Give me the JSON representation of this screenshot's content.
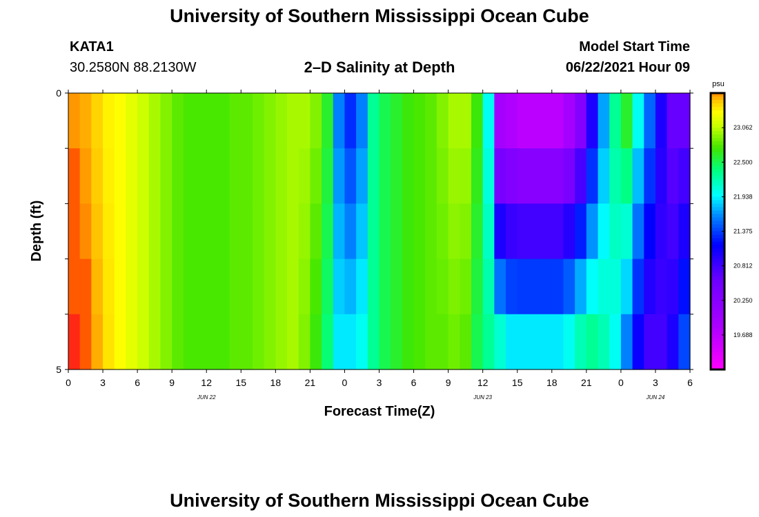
{
  "header": {
    "title": "University of Southern Mississippi Ocean Cube",
    "station_id": "KATA1",
    "coordinates": "30.2580N  88.2130W",
    "plot_title": "2–D Salinity at Depth",
    "model_start_label": "Model Start Time",
    "model_start_value": "06/22/2021 Hour 09"
  },
  "footer": {
    "title": "University of Southern Mississippi Ocean Cube"
  },
  "colors": {
    "scale_high": "#ff8c00",
    "scale_low": "#ff00ff"
  },
  "chart_data": {
    "type": "heatmap",
    "title": "2–D Salinity at Depth",
    "xlabel": "Forecast Time(Z)",
    "ylabel": "Depth (ft)",
    "x_unit": "hours",
    "xlim": [
      0,
      54
    ],
    "ylim": [
      5,
      0
    ],
    "y_ticks": [
      "0",
      "5"
    ],
    "x_tick_labels": [
      "0",
      "3",
      "6",
      "9",
      "12",
      "15",
      "18",
      "21",
      "0",
      "3",
      "6",
      "9",
      "12",
      "15",
      "18",
      "21",
      "0",
      "3",
      "6"
    ],
    "date_labels": [
      "JUN 22",
      "JUN 23",
      "JUN 24"
    ],
    "colorbar": {
      "unit": "psu",
      "min": 19.125,
      "max": 23.625,
      "tick_labels": [
        "23.062",
        "22.500",
        "21.938",
        "21.375",
        "20.812",
        "20.250",
        "19.688"
      ]
    },
    "depth_layers_ft": [
      0.5,
      1.5,
      2.5,
      3.5,
      4.5
    ],
    "hours": [
      0,
      1,
      2,
      3,
      4,
      5,
      6,
      7,
      8,
      9,
      10,
      11,
      12,
      13,
      14,
      15,
      16,
      17,
      18,
      19,
      20,
      21,
      22,
      23,
      24,
      25,
      26,
      27,
      28,
      29,
      30,
      31,
      32,
      33,
      34,
      35,
      36,
      37,
      38,
      39,
      40,
      41,
      42,
      43,
      44,
      45,
      46,
      47,
      48,
      49,
      50,
      51,
      52,
      53,
      54
    ],
    "salinity_surface_psu": [
      23.6,
      23.55,
      23.45,
      23.35,
      23.3,
      23.2,
      23.1,
      23.0,
      22.9,
      22.8,
      22.75,
      22.75,
      22.75,
      22.75,
      22.8,
      22.8,
      22.85,
      22.9,
      22.95,
      23.0,
      23.0,
      22.9,
      22.6,
      21.6,
      21.3,
      21.6,
      22.3,
      22.5,
      22.6,
      22.7,
      22.75,
      22.8,
      22.9,
      23.0,
      23.0,
      22.7,
      22.0,
      19.9,
      19.8,
      19.7,
      19.7,
      19.7,
      19.7,
      19.9,
      20.3,
      21.0,
      21.7,
      22.3,
      22.6,
      22.0,
      21.5,
      21.0,
      20.6,
      20.6,
      20.6
    ],
    "salinity_bottom_psu": [
      23.8,
      23.7,
      23.55,
      23.4,
      23.3,
      23.2,
      23.1,
      23.0,
      22.9,
      22.8,
      22.75,
      22.75,
      22.75,
      22.75,
      22.8,
      22.8,
      22.85,
      22.9,
      22.95,
      23.0,
      22.9,
      22.7,
      22.4,
      21.9,
      21.9,
      22.0,
      22.3,
      22.5,
      22.6,
      22.7,
      22.75,
      22.8,
      22.8,
      22.85,
      22.8,
      22.5,
      22.3,
      22.1,
      21.9,
      21.9,
      21.9,
      21.9,
      21.9,
      22.0,
      22.2,
      22.3,
      22.2,
      22.0,
      21.6,
      21.1,
      20.8,
      20.8,
      21.0,
      21.4,
      21.8
    ]
  }
}
